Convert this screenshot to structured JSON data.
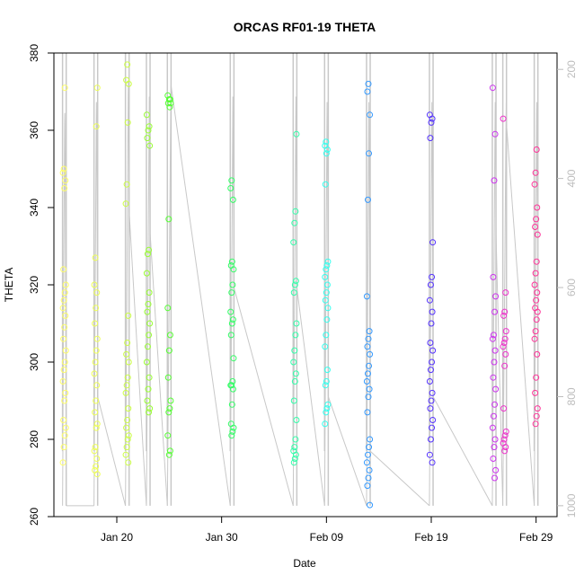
{
  "chart_data": {
    "type": "scatter",
    "title": "ORCAS RF01-19 THETA",
    "xlabel": "Date",
    "ylabel": "THETA",
    "x_axis": {
      "type": "date",
      "range": [
        "2016-01-14",
        "2016-03-02"
      ],
      "ticks": [
        {
          "date": "2016-01-20",
          "label": "Jan 20"
        },
        {
          "date": "2016-01-30",
          "label": "Jan 30"
        },
        {
          "date": "2016-02-09",
          "label": "Feb 09"
        },
        {
          "date": "2016-02-19",
          "label": "Feb 19"
        },
        {
          "date": "2016-02-29",
          "label": "Feb 29"
        }
      ]
    },
    "y_axis": {
      "range": [
        260,
        380
      ],
      "ticks": [
        260,
        280,
        300,
        320,
        340,
        360,
        380
      ]
    },
    "y2_axis": {
      "side": "right",
      "color": "#bdbdbd",
      "range": [
        1020,
        170
      ],
      "ticks": [
        200,
        400,
        600,
        800,
        1000
      ]
    },
    "grid": false,
    "legend": "none",
    "flights": [
      {
        "date": "2016-01-15",
        "color": "#FFFF66",
        "theta": [
          274,
          278,
          281,
          283,
          285,
          290,
          292,
          295,
          298,
          300,
          303,
          306,
          309,
          312,
          314,
          316,
          318,
          320,
          324,
          345,
          347,
          349,
          350,
          371
        ],
        "pressure": [
          1000,
          950,
          900,
          820,
          780,
          700,
          650,
          600,
          550,
          500,
          450,
          400,
          350,
          300,
          280,
          300,
          350,
          400,
          500,
          600,
          700,
          800,
          900,
          1000
        ]
      },
      {
        "date": "2016-01-18",
        "color": "#EEFF55",
        "theta": [
          271,
          272,
          273,
          275,
          277,
          278,
          283,
          284,
          287,
          290,
          294,
          297,
          300,
          303,
          306,
          310,
          314,
          318,
          320,
          327,
          361,
          371
        ],
        "pressure": [
          1000,
          950,
          900,
          820,
          760,
          700,
          650,
          600,
          550,
          500,
          450,
          400,
          350,
          300,
          260,
          300,
          350,
          400,
          500,
          600,
          700,
          800
        ]
      },
      {
        "date": "2016-01-21",
        "color": "#CCFF44",
        "theta": [
          274,
          276,
          278,
          280,
          281,
          283,
          285,
          288,
          292,
          294,
          296,
          300,
          302,
          305,
          312,
          341,
          346,
          362,
          372,
          373,
          377
        ],
        "pressure": [
          1000,
          950,
          900,
          850,
          800,
          750,
          700,
          650,
          600,
          550,
          500,
          450,
          400,
          350,
          300,
          250,
          220,
          260,
          300,
          380,
          460
        ]
      },
      {
        "date": "2016-01-23",
        "color": "#99FF33",
        "theta": [
          287,
          288,
          290,
          293,
          296,
          300,
          304,
          307,
          310,
          313,
          315,
          318,
          323,
          328,
          329,
          356,
          358,
          360,
          361,
          364
        ],
        "pressure": [
          1000,
          950,
          900,
          850,
          800,
          750,
          700,
          650,
          600,
          550,
          500,
          450,
          400,
          350,
          300,
          250,
          280,
          320,
          400,
          500
        ]
      },
      {
        "date": "2016-01-25",
        "color": "#55FF33",
        "theta": [
          276,
          277,
          281,
          287,
          288,
          290,
          296,
          303,
          307,
          314,
          337,
          366,
          367,
          367,
          368,
          368,
          369
        ],
        "pressure": [
          1000,
          950,
          900,
          850,
          800,
          750,
          700,
          650,
          600,
          550,
          500,
          450,
          400,
          350,
          300,
          260,
          230
        ]
      },
      {
        "date": "2016-01-31",
        "color": "#33FF66",
        "theta": [
          281,
          282,
          283,
          284,
          289,
          293,
          294,
          294,
          295,
          301,
          307,
          310,
          311,
          313,
          318,
          320,
          324,
          325,
          326,
          342,
          345,
          347
        ],
        "pressure": [
          1000,
          950,
          900,
          850,
          800,
          750,
          700,
          650,
          600,
          550,
          500,
          450,
          400,
          350,
          300,
          250,
          300,
          350,
          400,
          450,
          500,
          600
        ]
      },
      {
        "date": "2016-02-06",
        "color": "#33FFAA",
        "theta": [
          274,
          275,
          276,
          277,
          278,
          280,
          285,
          290,
          295,
          297,
          300,
          303,
          307,
          310,
          318,
          320,
          321,
          331,
          336,
          339,
          359
        ],
        "pressure": [
          1000,
          950,
          900,
          850,
          800,
          750,
          700,
          650,
          600,
          550,
          500,
          450,
          400,
          350,
          300,
          250,
          300,
          350,
          400,
          500,
          600
        ]
      },
      {
        "date": "2016-02-09",
        "color": "#33FFEE",
        "theta": [
          284,
          287,
          288,
          289,
          294,
          295,
          298,
          304,
          307,
          311,
          314,
          316,
          318,
          320,
          322,
          324,
          325,
          326,
          346,
          354,
          355,
          356,
          357
        ],
        "pressure": [
          1000,
          950,
          900,
          850,
          800,
          750,
          700,
          650,
          600,
          550,
          500,
          450,
          400,
          350,
          300,
          260,
          300,
          350,
          400,
          500,
          600,
          700,
          800
        ]
      },
      {
        "date": "2016-02-13",
        "color": "#3399FF",
        "theta": [
          263,
          268,
          270,
          272,
          274,
          276,
          278,
          280,
          287,
          291,
          293,
          295,
          297,
          299,
          302,
          304,
          306,
          308,
          317,
          342,
          354,
          364,
          370,
          372
        ],
        "pressure": [
          1000,
          950,
          900,
          850,
          800,
          750,
          700,
          650,
          600,
          550,
          500,
          450,
          400,
          350,
          300,
          260,
          300,
          350,
          400,
          500,
          600,
          700,
          800,
          900
        ]
      },
      {
        "date": "2016-02-19",
        "color": "#5533FF",
        "theta": [
          274,
          276,
          280,
          283,
          285,
          288,
          290,
          292,
          295,
          298,
          300,
          303,
          305,
          310,
          313,
          316,
          320,
          322,
          331,
          358,
          362,
          363,
          364
        ],
        "pressure": [
          1000,
          950,
          900,
          850,
          800,
          750,
          700,
          650,
          600,
          550,
          500,
          450,
          400,
          350,
          300,
          260,
          300,
          350,
          400,
          500,
          600,
          700,
          800
        ]
      },
      {
        "date": "2016-02-25",
        "color": "#CC33EE",
        "theta": [
          270,
          272,
          275,
          278,
          280,
          283,
          286,
          289,
          293,
          296,
          300,
          303,
          306,
          307,
          313,
          317,
          322,
          347,
          359,
          371
        ],
        "pressure": [
          1000,
          950,
          900,
          850,
          800,
          750,
          700,
          650,
          600,
          550,
          500,
          450,
          400,
          350,
          300,
          260,
          300,
          350,
          400,
          500
        ]
      },
      {
        "date": "2016-02-26",
        "color": "#EE33CC",
        "theta": [
          277,
          278,
          279,
          280,
          281,
          282,
          288,
          299,
          302,
          304,
          305,
          306,
          308,
          312,
          313,
          318,
          363
        ],
        "pressure": [
          1000,
          950,
          900,
          850,
          800,
          750,
          700,
          650,
          600,
          550,
          500,
          450,
          400,
          350,
          300,
          260,
          300
        ]
      },
      {
        "date": "2016-02-29",
        "color": "#FF3399",
        "theta": [
          284,
          286,
          288,
          292,
          296,
          302,
          306,
          308,
          311,
          313,
          314,
          316,
          318,
          320,
          323,
          326,
          333,
          335,
          337,
          340,
          346,
          349,
          355
        ],
        "pressure": [
          1000,
          950,
          900,
          850,
          800,
          750,
          700,
          650,
          600,
          550,
          500,
          450,
          400,
          350,
          300,
          260,
          300,
          350,
          400,
          450,
          500,
          600,
          700
        ]
      }
    ],
    "pressure_trace_color": "#c8c8c8"
  }
}
